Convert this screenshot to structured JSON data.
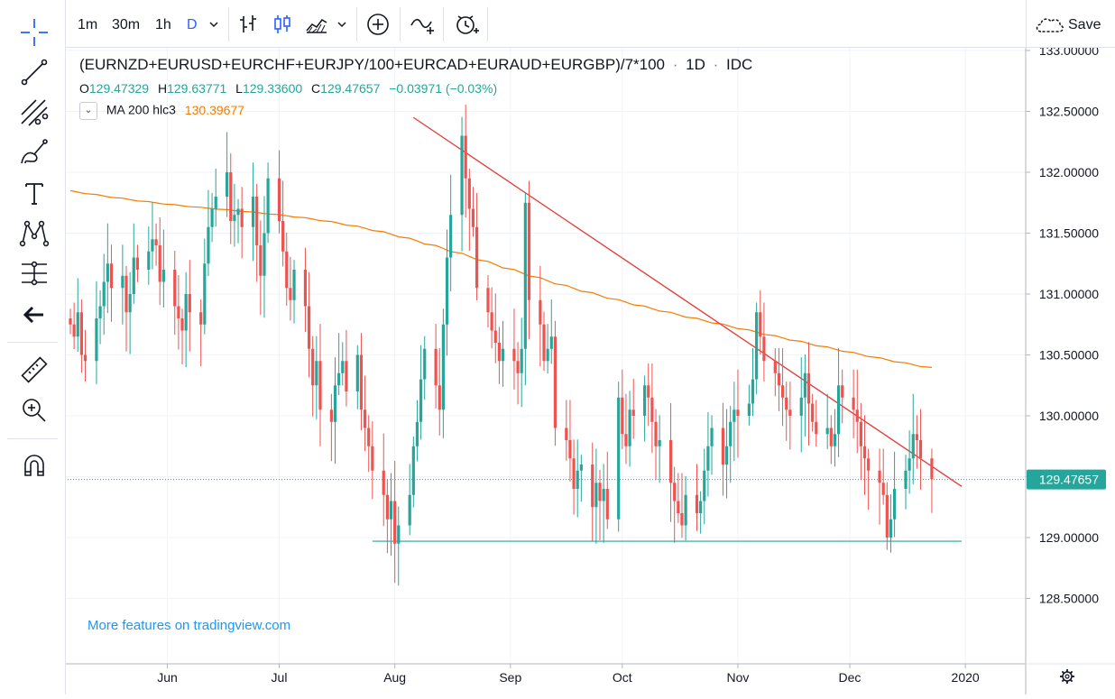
{
  "toolbar": {
    "intervals": [
      "1m",
      "30m",
      "1h",
      "D"
    ],
    "active_interval": "D",
    "save_label": "Save"
  },
  "legend": {
    "symbol": "(EURNZD+EURUSD+EURCHF+EURJPY/100+EURCAD+EURAUD+EURGBP)/7*100",
    "dot1": "·",
    "interval": "1D",
    "dot2": "·",
    "source": "IDC",
    "ohlc": {
      "o_label": "O",
      "o": "129.47329",
      "h_label": "H",
      "h": "129.63771",
      "l_label": "L",
      "l": "129.33600",
      "c_label": "C",
      "c": "129.47657",
      "change": "−0.03971 (−0.03%)"
    },
    "ma_label": "MA 200 hlc3",
    "ma_value": "130.39677"
  },
  "promo": "More features on tradingview.com",
  "colors": {
    "up": "#26a69a",
    "down": "#ef5350",
    "ma": "#f57c00",
    "trendline": "#e53935",
    "accent": "#2962ff",
    "promo": "#2196f3"
  },
  "left_tools": [
    "crosshair-icon",
    "trend-line-icon",
    "fib-icon",
    "brush-icon",
    "text-icon",
    "pattern-icon",
    "prediction-icon",
    "back-arrow-icon",
    "ruler-icon",
    "zoom-icon",
    "magnet-icon"
  ],
  "chart_data": {
    "type": "candlestick",
    "x_ticks": [
      "Jun",
      "Jul",
      "Aug",
      "Sep",
      "Oct",
      "Nov",
      "Dec",
      "2020"
    ],
    "y_ticks": [
      "128.50000",
      "129.00000",
      "129.50000",
      "130.00000",
      "130.50000",
      "131.00000",
      "131.50000",
      "132.00000",
      "132.50000",
      "133.00000"
    ],
    "ylim": [
      128.0,
      133.1
    ],
    "last_price": "129.47657",
    "start_date": "2019-05-06",
    "closes": [
      130.75,
      130.65,
      130.85,
      130.5,
      130.45,
      130.8,
      130.9,
      131.1,
      131.25,
      131.05,
      131.15,
      130.85,
      131.0,
      131.3,
      131.2,
      131.35,
      131.45,
      131.4,
      131.1,
      131.2,
      130.9,
      130.8,
      130.7,
      131.0,
      130.85,
      130.75,
      131.25,
      131.55,
      131.7,
      131.8,
      132.0,
      131.6,
      131.65,
      131.7,
      131.55,
      131.8,
      131.4,
      131.15,
      131.5,
      131.95,
      131.6,
      131.35,
      131.05,
      130.95,
      131.2,
      130.9,
      130.55,
      130.25,
      130.45,
      130.05,
      129.95,
      130.25,
      130.35,
      130.45,
      130.2,
      130.5,
      130.05,
      129.9,
      129.75,
      129.55,
      129.35,
      129.15,
      129.3,
      128.95,
      129.1,
      129.35,
      129.75,
      129.95,
      130.3,
      130.55,
      130.25,
      130.05,
      130.75,
      131.3,
      131.65,
      132.3,
      131.95,
      131.7,
      131.55,
      131.05,
      130.85,
      130.7,
      130.6,
      130.45,
      130.55,
      130.45,
      130.35,
      130.55,
      131.75,
      130.95,
      130.75,
      130.45,
      130.55,
      130.65,
      129.9,
      129.8,
      129.65,
      129.4,
      129.55,
      129.6,
      129.25,
      129.45,
      129.3,
      129.4,
      129.15,
      130.15,
      129.85,
      129.75,
      130.05,
      130.0,
      130.25,
      130.15,
      129.95,
      129.75,
      129.8,
      129.45,
      129.3,
      129.2,
      129.1,
      129.35,
      129.2,
      129.3,
      129.55,
      129.75,
      129.9,
      129.6,
      129.75,
      129.95,
      130.05,
      130.0,
      130.1,
      130.3,
      130.85,
      130.65,
      130.45,
      130.35,
      130.25,
      130.15,
      130.05,
      130.0,
      130.15,
      130.35,
      130.1,
      129.95,
      129.85,
      129.9,
      129.75,
      129.85,
      130.25,
      130.15,
      130.05,
      129.95,
      129.75,
      129.65,
      129.55,
      129.45,
      129.35,
      129.0,
      129.15,
      129.4,
      129.55,
      129.65,
      129.85,
      129.8,
      129.65,
      129.48
    ],
    "ma200": {
      "start_value": 131.85,
      "end_value": 130.39677
    },
    "support_level": 128.97,
    "trendline": {
      "from_date": "2019-08-06",
      "from_value": 132.45,
      "to_date": "2019-12-31",
      "to_value": 129.42
    }
  }
}
